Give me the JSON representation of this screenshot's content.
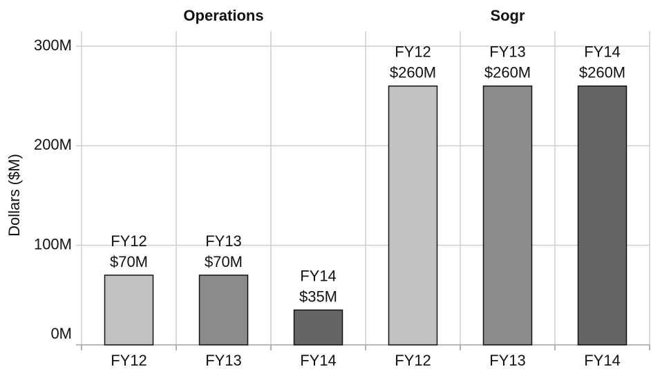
{
  "chart_data": {
    "type": "bar",
    "ylabel": "Dollars ($M)",
    "ylim": [
      0,
      300
    ],
    "yticks": [
      {
        "value": 0,
        "label": "0M"
      },
      {
        "value": 100,
        "label": "100M"
      },
      {
        "value": 200,
        "label": "200M"
      },
      {
        "value": 300,
        "label": "300M"
      }
    ],
    "colors": [
      "#c0c1c0",
      "#8a8b8a",
      "#646564"
    ],
    "grid": true,
    "facets": [
      {
        "title": "Operations",
        "categories": [
          "FY12",
          "FY13",
          "FY14"
        ],
        "values": [
          70,
          70,
          35
        ],
        "value_labels": [
          "$70M",
          "$70M",
          "$35M"
        ]
      },
      {
        "title": "Sogr",
        "categories": [
          "FY12",
          "FY13",
          "FY14"
        ],
        "values": [
          260,
          260,
          260
        ],
        "value_labels": [
          "$260M",
          "$260M",
          "$260M"
        ]
      }
    ]
  }
}
